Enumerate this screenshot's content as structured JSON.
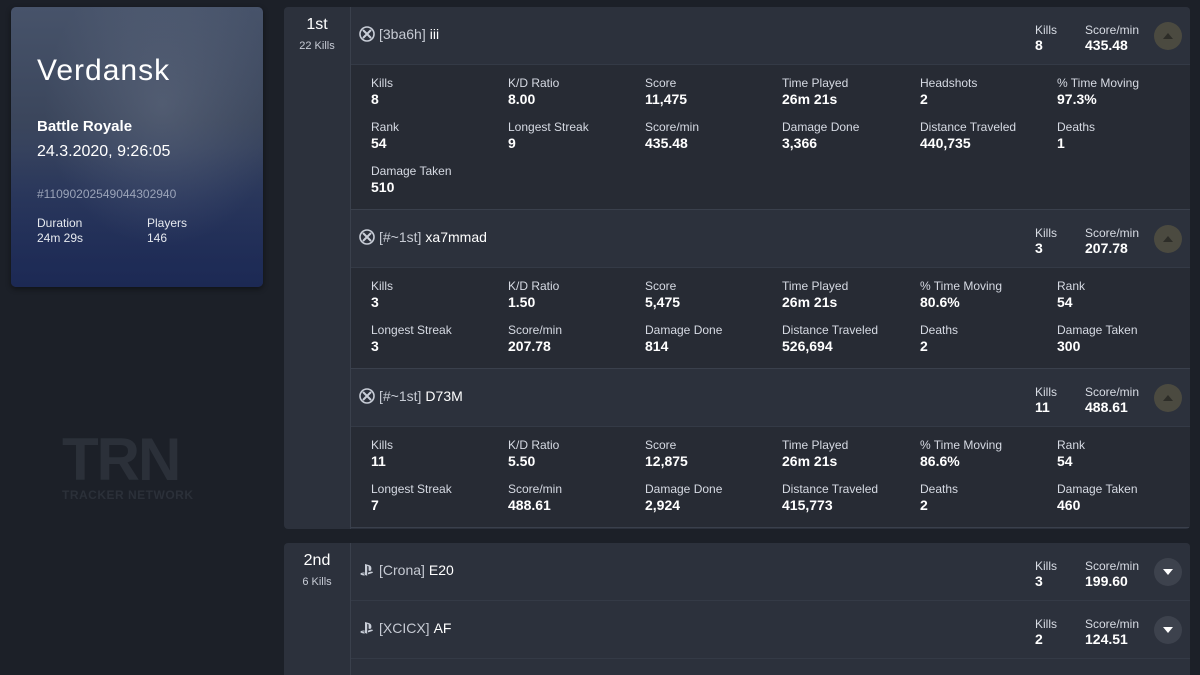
{
  "match": {
    "map": "Verdansk",
    "mode": "Battle Royale",
    "date": "24.3.2020, 9:26:05",
    "id": "#11090202549044302940",
    "duration_label": "Duration",
    "duration": "24m 29s",
    "players_label": "Players",
    "players": "146"
  },
  "watermark": {
    "big": "TRN",
    "small": "TRACKER NETWORK"
  },
  "header_labels": {
    "kills": "Kills",
    "score_min": "Score/min"
  },
  "teams": [
    {
      "place": "1st",
      "kills": "22 Kills",
      "players": [
        {
          "platform": "xbox-icon",
          "tag": "[3ba6h]",
          "name": "iii",
          "kills": "8",
          "score_min": "435.48",
          "stats": [
            {
              "label": "Kills",
              "value": "8"
            },
            {
              "label": "K/D Ratio",
              "value": "8.00"
            },
            {
              "label": "Score",
              "value": "11,475"
            },
            {
              "label": "Time Played",
              "value": "26m 21s"
            },
            {
              "label": "Headshots",
              "value": "2"
            },
            {
              "label": "% Time Moving",
              "value": "97.3%"
            },
            {
              "label": "Rank",
              "value": "54"
            },
            {
              "label": "Longest Streak",
              "value": "9"
            },
            {
              "label": "Score/min",
              "value": "435.48"
            },
            {
              "label": "Damage Done",
              "value": "3,366"
            },
            {
              "label": "Distance Traveled",
              "value": "440,735"
            },
            {
              "label": "Deaths",
              "value": "1"
            },
            {
              "label": "Damage Taken",
              "value": "510"
            }
          ]
        },
        {
          "platform": "xbox-icon",
          "tag": "[#~1st]",
          "name": "xa7mmad",
          "kills": "3",
          "score_min": "207.78",
          "stats": [
            {
              "label": "Kills",
              "value": "3"
            },
            {
              "label": "K/D Ratio",
              "value": "1.50"
            },
            {
              "label": "Score",
              "value": "5,475"
            },
            {
              "label": "Time Played",
              "value": "26m 21s"
            },
            {
              "label": "% Time Moving",
              "value": "80.6%"
            },
            {
              "label": "Rank",
              "value": "54"
            },
            {
              "label": "Longest Streak",
              "value": "3"
            },
            {
              "label": "Score/min",
              "value": "207.78"
            },
            {
              "label": "Damage Done",
              "value": "814"
            },
            {
              "label": "Distance Traveled",
              "value": "526,694"
            },
            {
              "label": "Deaths",
              "value": "2"
            },
            {
              "label": "Damage Taken",
              "value": "300"
            }
          ]
        },
        {
          "platform": "xbox-icon",
          "tag": "[#~1st]",
          "name": "D73M",
          "kills": "11",
          "score_min": "488.61",
          "stats": [
            {
              "label": "Kills",
              "value": "11"
            },
            {
              "label": "K/D Ratio",
              "value": "5.50"
            },
            {
              "label": "Score",
              "value": "12,875"
            },
            {
              "label": "Time Played",
              "value": "26m 21s"
            },
            {
              "label": "% Time Moving",
              "value": "86.6%"
            },
            {
              "label": "Rank",
              "value": "54"
            },
            {
              "label": "Longest Streak",
              "value": "7"
            },
            {
              "label": "Score/min",
              "value": "488.61"
            },
            {
              "label": "Damage Done",
              "value": "2,924"
            },
            {
              "label": "Distance Traveled",
              "value": "415,773"
            },
            {
              "label": "Deaths",
              "value": "2"
            },
            {
              "label": "Damage Taken",
              "value": "460"
            }
          ]
        }
      ]
    },
    {
      "place": "2nd",
      "kills": "6 Kills",
      "players": [
        {
          "platform": "playstation-icon",
          "tag": "[Crona]",
          "name": "E20",
          "kills": "3",
          "score_min": "199.60"
        },
        {
          "platform": "playstation-icon",
          "tag": "[XCICX]",
          "name": "AF",
          "kills": "2",
          "score_min": "124.51"
        }
      ]
    }
  ]
}
